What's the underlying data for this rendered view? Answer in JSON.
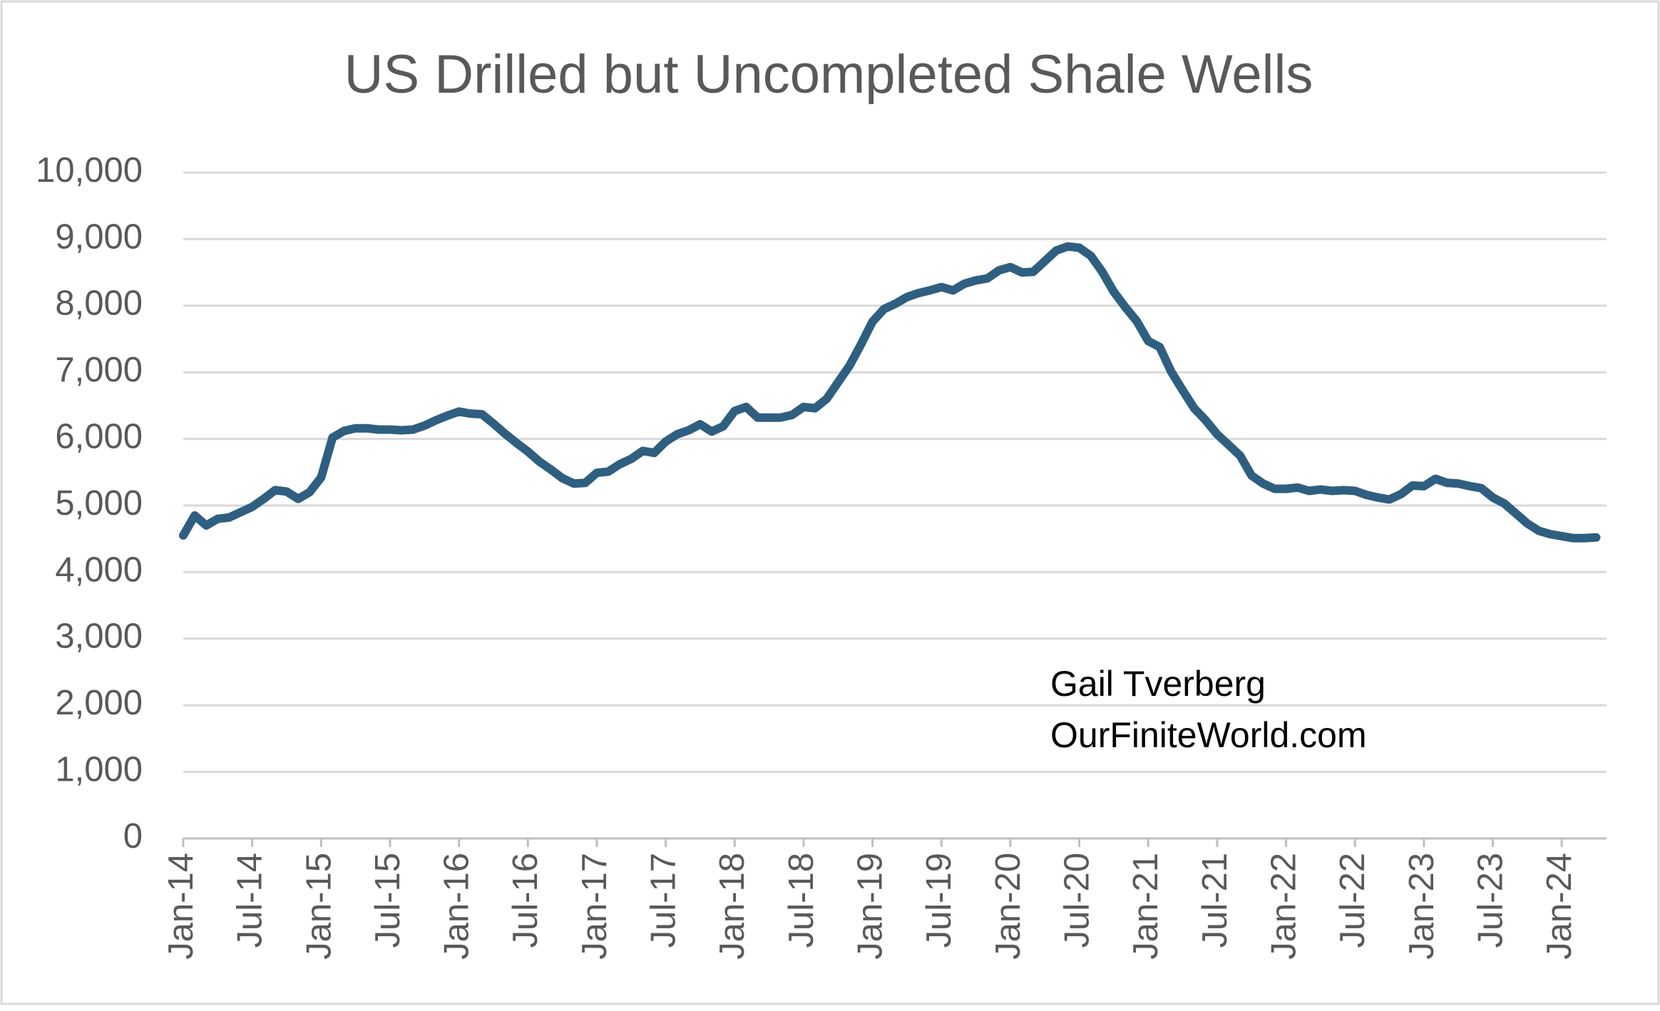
{
  "chart_data": {
    "type": "line",
    "title": "US Drilled but Uncompleted Shale Wells",
    "categories": [
      "Jan-14",
      null,
      null,
      null,
      null,
      null,
      "Jul-14",
      null,
      null,
      null,
      null,
      null,
      "Jan-15",
      null,
      null,
      null,
      null,
      null,
      "Jul-15",
      null,
      null,
      null,
      null,
      null,
      "Jan-16",
      null,
      null,
      null,
      null,
      null,
      "Jul-16",
      null,
      null,
      null,
      null,
      null,
      "Jan-17",
      null,
      null,
      null,
      null,
      null,
      "Jul-17",
      null,
      null,
      null,
      null,
      null,
      "Jan-18",
      null,
      null,
      null,
      null,
      null,
      "Jul-18",
      null,
      null,
      null,
      null,
      null,
      "Jan-19",
      null,
      null,
      null,
      null,
      null,
      "Jul-19",
      null,
      null,
      null,
      null,
      null,
      "Jan-20",
      null,
      null,
      null,
      null,
      null,
      "Jul-20",
      null,
      null,
      null,
      null,
      null,
      "Jan-21",
      null,
      null,
      null,
      null,
      null,
      "Jul-21",
      null,
      null,
      null,
      null,
      null,
      "Jan-22",
      null,
      null,
      null,
      null,
      null,
      "Jul-22",
      null,
      null,
      null,
      null,
      null,
      "Jan-23",
      null,
      null,
      null,
      null,
      null,
      "Jul-23",
      null,
      null,
      null,
      null,
      null,
      "Jan-24",
      null,
      null,
      null
    ],
    "values": [
      4550,
      4850,
      4700,
      4800,
      4820,
      4900,
      4980,
      5100,
      5230,
      5210,
      5100,
      5200,
      5420,
      6020,
      6120,
      6160,
      6160,
      6140,
      6140,
      6130,
      6140,
      6200,
      6280,
      6350,
      6410,
      6380,
      6370,
      6230,
      6080,
      5940,
      5810,
      5660,
      5540,
      5410,
      5330,
      5340,
      5490,
      5510,
      5620,
      5700,
      5820,
      5790,
      5960,
      6070,
      6130,
      6220,
      6110,
      6190,
      6420,
      6480,
      6320,
      6320,
      6320,
      6360,
      6480,
      6460,
      6600,
      6850,
      7100,
      7420,
      7760,
      7950,
      8030,
      8130,
      8190,
      8230,
      8280,
      8230,
      8330,
      8380,
      8410,
      8530,
      8580,
      8500,
      8510,
      8670,
      8830,
      8890,
      8870,
      8750,
      8510,
      8210,
      7980,
      7770,
      7470,
      7380,
      7010,
      6730,
      6460,
      6280,
      6070,
      5910,
      5750,
      5450,
      5330,
      5250,
      5250,
      5270,
      5220,
      5240,
      5220,
      5230,
      5220,
      5160,
      5120,
      5090,
      5170,
      5300,
      5290,
      5400,
      5340,
      5330,
      5290,
      5260,
      5120,
      5030,
      4880,
      4730,
      4620,
      4570,
      4540,
      4510,
      4510,
      4520
    ],
    "color": "#2f5f80",
    "ylim": [
      0,
      10000
    ],
    "yticks": [
      0,
      {
        "value": 1000,
        "label": "1,000"
      },
      {
        "value": 2000,
        "label": "2,000"
      },
      {
        "value": 3000,
        "label": "3,000"
      },
      {
        "value": 4000,
        "label": "4,000"
      },
      {
        "value": 5000,
        "label": "5,000"
      },
      {
        "value": 6000,
        "label": "6,000"
      },
      {
        "value": 7000,
        "label": "7,000"
      },
      {
        "value": 8000,
        "label": "8,000"
      },
      {
        "value": 9000,
        "label": "9,000"
      },
      {
        "value": 10000,
        "label": "10,000"
      }
    ],
    "grid": true,
    "annotations": [
      "Gail Tverberg",
      "OurFiniteWorld.com"
    ]
  }
}
